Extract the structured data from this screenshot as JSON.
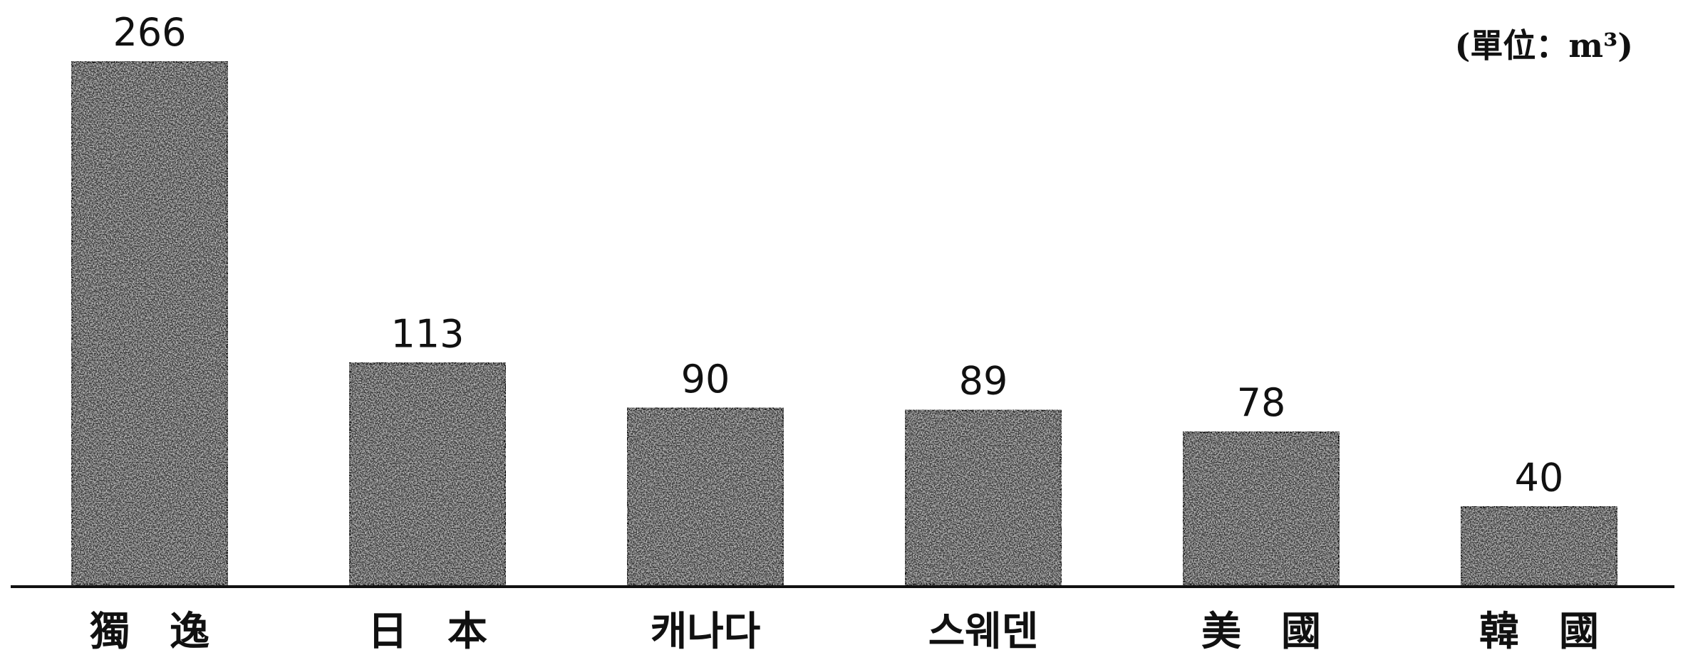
{
  "chart_data": {
    "type": "bar",
    "unit": "(單位：m³)",
    "categories": [
      "獨　逸",
      "日　本",
      "캐나다",
      "스웨덴",
      "美　國",
      "韓　國"
    ],
    "values": [
      266,
      113,
      90,
      89,
      78,
      40
    ],
    "title": "",
    "xlabel": "",
    "ylabel": "",
    "grid": false,
    "bar_color": "#3a3a3a",
    "text_color": "#111111"
  }
}
